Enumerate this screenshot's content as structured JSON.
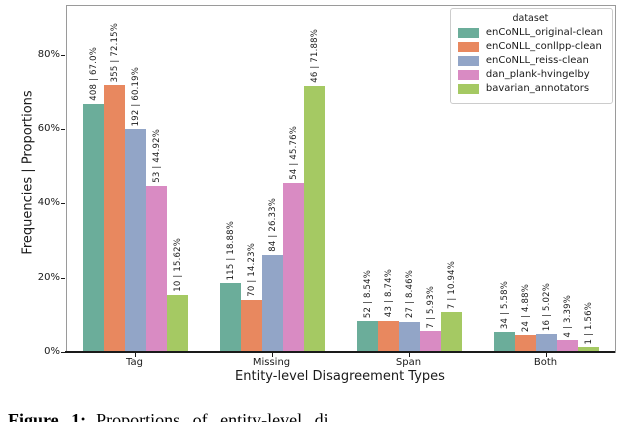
{
  "chart_data": {
    "type": "bar",
    "title": "",
    "xlabel": "Entity-level Disagreement Types",
    "ylabel": "Frequencies | Proportions",
    "categories": [
      "Tag",
      "Missing",
      "Span",
      "Both"
    ],
    "series": [
      {
        "name": "enCoNLL_original-clean",
        "color": "#6BAD9A",
        "counts": [
          408,
          115,
          52,
          34
        ],
        "percents": [
          67.0,
          18.88,
          8.54,
          5.58
        ],
        "labels": [
          "408 | 67.0%",
          "115 | 18.88%",
          "52 | 8.54%",
          "34 | 5.58%"
        ]
      },
      {
        "name": "enCoNLL_conllpp-clean",
        "color": "#E8885F",
        "counts": [
          355,
          70,
          43,
          24
        ],
        "percents": [
          72.15,
          14.23,
          8.74,
          4.88
        ],
        "labels": [
          "355 | 72.15%",
          "70 | 14.23%",
          "43 | 8.74%",
          "24 | 4.88%"
        ]
      },
      {
        "name": "enCoNLL_reiss-clean",
        "color": "#92A5C7",
        "counts": [
          192,
          84,
          27,
          16
        ],
        "percents": [
          60.19,
          26.33,
          8.46,
          5.02
        ],
        "labels": [
          "192 | 60.19%",
          "84 | 26.33%",
          "27 | 8.46%",
          "16 | 5.02%"
        ]
      },
      {
        "name": "dan_plank-hvingelby",
        "color": "#D98BC3",
        "counts": [
          53,
          54,
          7,
          4
        ],
        "percents": [
          44.92,
          45.76,
          5.93,
          3.39
        ],
        "labels": [
          "53 | 44.92%",
          "54 | 45.76%",
          "7 | 5.93%",
          "4 | 3.39%"
        ]
      },
      {
        "name": "bavarian_annotators",
        "color": "#A5C963",
        "counts": [
          10,
          46,
          7,
          1
        ],
        "percents": [
          15.62,
          71.88,
          10.94,
          1.56
        ],
        "labels": [
          "10 | 15.62%",
          "46 | 71.88%",
          "7 | 10.94%",
          "1 | 1.56%"
        ]
      }
    ],
    "legend_title": "dataset",
    "legend_position": "upper right",
    "y_ticks": [
      {
        "label": "0%",
        "value": 0
      },
      {
        "label": "20%",
        "value": 20
      },
      {
        "label": "40%",
        "value": 40
      },
      {
        "label": "60%",
        "value": 60
      },
      {
        "label": "80%",
        "value": 80
      }
    ],
    "ylim": [
      0,
      93.4
    ],
    "grid": false
  },
  "axes": {
    "xlabel": "Entity-level Disagreement Types",
    "ylabel": "Frequencies | Proportions"
  },
  "legend": {
    "title": "dataset"
  },
  "caption": {
    "prefix": "Figure 1:",
    "text": "Proportions of entity-level di"
  }
}
